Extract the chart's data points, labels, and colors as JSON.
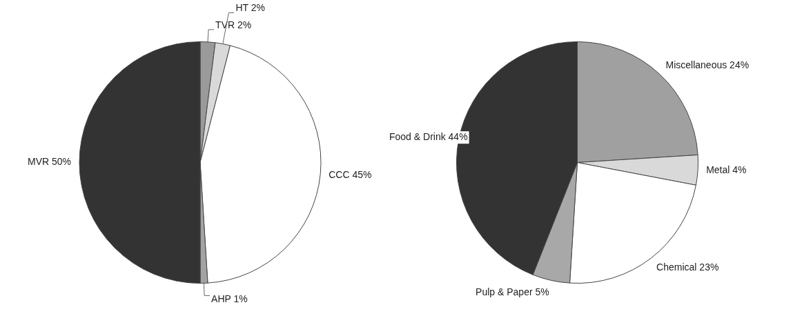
{
  "chart_data": [
    {
      "type": "pie",
      "categories": [
        "TVR",
        "HT",
        "CCC",
        "AHP",
        "MVR"
      ],
      "values": [
        2,
        2,
        45,
        1,
        50
      ],
      "value_labels": [
        "2%",
        "2%",
        "45%",
        "1%",
        "50%"
      ],
      "colors": [
        "#9a9a9a",
        "#d9d9d9",
        "#ffffff",
        "#a3a3a3",
        "#333333"
      ],
      "legend": false
    },
    {
      "type": "pie",
      "categories": [
        "Miscellaneous",
        "Metal",
        "Chemical",
        "Pulp & Paper",
        "Food & Drink"
      ],
      "values": [
        24,
        4,
        23,
        5,
        44
      ],
      "value_labels": [
        "24%",
        "4%",
        "23%",
        "5%",
        "44%"
      ],
      "colors": [
        "#a0a0a0",
        "#d9d9d9",
        "#ffffff",
        "#a8a8a8",
        "#333333"
      ],
      "legend": false
    }
  ]
}
